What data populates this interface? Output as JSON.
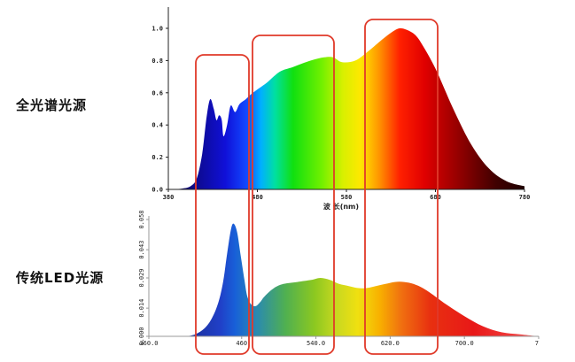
{
  "labels": {
    "top": "全光谱光源",
    "bottom": "传统LED光源"
  },
  "colors": {
    "highlight_box": "#e03a2a"
  },
  "chart_data": [
    {
      "type": "area",
      "xlabel": "波 长(nm)",
      "ylabel": "",
      "xlim": [
        380,
        780
      ],
      "ylim": [
        0,
        1.0
      ],
      "xticks": [
        "380",
        "480",
        "580",
        "680",
        "780"
      ],
      "yticks": [
        "0.0",
        "0.2",
        "0.4",
        "0.6",
        "0.8",
        "1.0"
      ],
      "grid": false,
      "x": [
        380,
        395,
        405,
        412,
        418,
        423,
        427,
        431,
        434,
        437,
        440,
        442,
        446,
        450,
        455,
        460,
        467,
        475,
        490,
        505,
        520,
        540,
        555,
        565,
        575,
        590,
        605,
        620,
        632,
        640,
        648,
        657,
        665,
        680,
        700,
        720,
        740,
        760,
        780
      ],
      "values": [
        0.0,
        0.005,
        0.02,
        0.07,
        0.22,
        0.45,
        0.56,
        0.5,
        0.43,
        0.46,
        0.43,
        0.33,
        0.4,
        0.52,
        0.48,
        0.53,
        0.56,
        0.6,
        0.66,
        0.73,
        0.76,
        0.8,
        0.82,
        0.82,
        0.79,
        0.8,
        0.86,
        0.93,
        0.98,
        1.0,
        0.99,
        0.96,
        0.9,
        0.75,
        0.5,
        0.28,
        0.13,
        0.05,
        0.02
      ]
    },
    {
      "type": "area",
      "xlabel": "",
      "ylabel": "",
      "xlim": [
        360,
        780
      ],
      "ylim": [
        0,
        0.058
      ],
      "xticks": [
        "360.0",
        "460",
        "540.0",
        "620.0",
        "700.0",
        "7"
      ],
      "yticks": [
        "0.000",
        "0.014",
        "0.029",
        "0.043",
        "0.058"
      ],
      "grid": false,
      "x": [
        400,
        410,
        420,
        428,
        435,
        440,
        444,
        448,
        451,
        455,
        459,
        463,
        466,
        470,
        475,
        480,
        485,
        495,
        505,
        520,
        535,
        545,
        555,
        565,
        575,
        585,
        595,
        605,
        615,
        625,
        635,
        645,
        655,
        665,
        680,
        700,
        720,
        740,
        760,
        780
      ],
      "values": [
        0.0,
        0.001,
        0.004,
        0.009,
        0.017,
        0.027,
        0.04,
        0.052,
        0.056,
        0.052,
        0.04,
        0.028,
        0.02,
        0.016,
        0.015,
        0.017,
        0.02,
        0.024,
        0.026,
        0.027,
        0.028,
        0.029,
        0.028,
        0.026,
        0.025,
        0.024,
        0.024,
        0.025,
        0.026,
        0.027,
        0.027,
        0.026,
        0.024,
        0.021,
        0.016,
        0.01,
        0.005,
        0.002,
        0.001,
        0.0
      ]
    }
  ]
}
